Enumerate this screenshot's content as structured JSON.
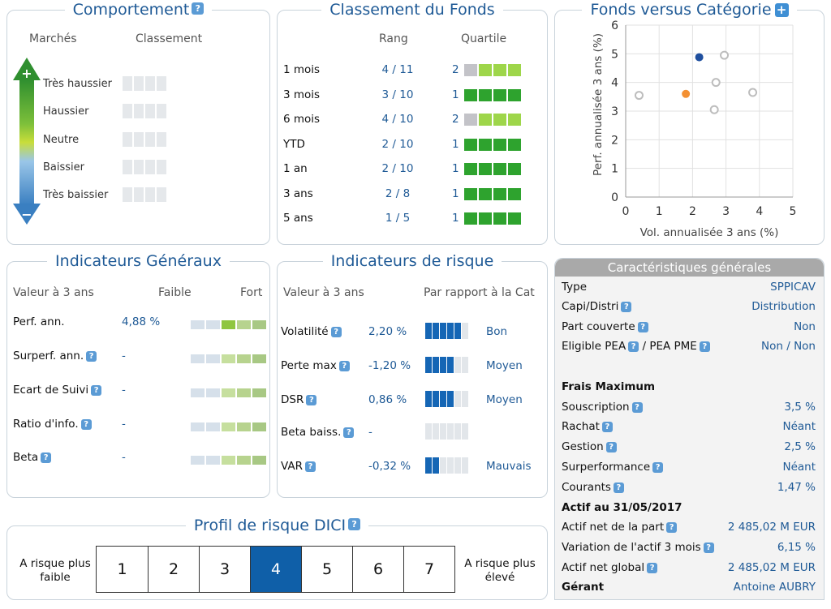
{
  "comportement": {
    "title": "Comportement",
    "col_markets": "Marchés",
    "col_classement": "Classement",
    "levels": [
      "Très haussier",
      "Haussier",
      "Neutre",
      "Baissier",
      "Très baissier"
    ],
    "arrow_top": "+",
    "arrow_bottom": "−"
  },
  "classement": {
    "title": "Classement du Fonds",
    "col_rang": "Rang",
    "col_quartile": "Quartile",
    "rows": [
      {
        "period": "1 mois",
        "rang": "4 / 11",
        "quartile": "2",
        "q": 2
      },
      {
        "period": "3 mois",
        "rang": "3 / 10",
        "quartile": "1",
        "q": 1
      },
      {
        "period": "6 mois",
        "rang": "4 / 10",
        "quartile": "2",
        "q": 2
      },
      {
        "period": "YTD",
        "rang": "2 / 10",
        "quartile": "1",
        "q": 1
      },
      {
        "period": "1 an",
        "rang": "2 / 10",
        "quartile": "1",
        "q": 1
      },
      {
        "period": "3 ans",
        "rang": "2 / 8",
        "quartile": "1",
        "q": 1
      },
      {
        "period": "5 ans",
        "rang": "1 / 5",
        "quartile": "1",
        "q": 1
      }
    ]
  },
  "fonds_vs_cat": {
    "title": "Fonds versus Catégorie",
    "plus": "+"
  },
  "chart_data": {
    "type": "scatter",
    "title": "",
    "xlabel": "Vol. annualisée 3 ans (%)",
    "ylabel": "Perf. annualisée 3 ans (%)",
    "xlim": [
      0,
      5
    ],
    "ylim": [
      0,
      6
    ],
    "xticks": [
      0,
      1,
      2,
      3,
      4,
      5
    ],
    "yticks": [
      0,
      1,
      2,
      3,
      4,
      5,
      6
    ],
    "grid": true,
    "points": [
      {
        "x": 2.2,
        "y": 4.88,
        "color": "#1f4f9e"
      },
      {
        "x": 1.8,
        "y": 3.6,
        "color": "#f39033"
      },
      {
        "x": 0.4,
        "y": 3.55,
        "color": "#bdbdbd"
      },
      {
        "x": 2.95,
        "y": 4.95,
        "color": "#bdbdbd"
      },
      {
        "x": 2.7,
        "y": 4.0,
        "color": "#bdbdbd"
      },
      {
        "x": 2.65,
        "y": 3.05,
        "color": "#bdbdbd"
      },
      {
        "x": 3.8,
        "y": 3.65,
        "color": "#bdbdbd"
      }
    ]
  },
  "indicateurs": {
    "title": "Indicateurs Généraux",
    "col_valeur": "Valeur à 3 ans",
    "col_faible": "Faible",
    "col_fort": "Fort",
    "rows": [
      {
        "label": "Perf. ann.",
        "value": "4,88 %",
        "level": 3
      },
      {
        "label": "Surperf. ann.",
        "value": "-",
        "level": 0
      },
      {
        "label": "Ecart de Suivi",
        "value": "-",
        "level": 0
      },
      {
        "label": "Ratio d'info.",
        "value": "-",
        "level": 0
      },
      {
        "label": "Beta",
        "value": "-",
        "level": 0
      }
    ]
  },
  "risque": {
    "title": "Indicateurs de risque",
    "col_valeur": "Valeur à 3 ans",
    "col_rapport": "Par rapport à la Cat",
    "rows": [
      {
        "label": "Volatilité",
        "value": "2,20 %",
        "rating": "Bon",
        "filled": 5
      },
      {
        "label": "Perte max",
        "value": "-1,20 %",
        "rating": "Moyen",
        "filled": 4
      },
      {
        "label": "DSR",
        "value": "0,86 %",
        "rating": "Moyen",
        "filled": 4
      },
      {
        "label": "Beta baiss.",
        "value": "-",
        "rating": "",
        "filled": 0
      },
      {
        "label": "VAR",
        "value": "-0,32 %",
        "rating": "Mauvais",
        "filled": 2
      }
    ]
  },
  "dici": {
    "title": "Profil de risque DICI",
    "low_label": "A risque plus faible",
    "high_label": "A risque plus élevé",
    "levels": [
      "1",
      "2",
      "3",
      "4",
      "5",
      "6",
      "7"
    ],
    "selected": 4
  },
  "caracteristiques": {
    "title": "Caractéristiques générales",
    "type_label": "Type",
    "type_value": "SPPICAV",
    "capi_label": "Capi/Distri",
    "capi_value": "Distribution",
    "couverte_label": "Part couverte",
    "couverte_value": "Non",
    "pea_label": "Eligible PEA",
    "pea_sep": " / PEA PME",
    "pea_value": "Non / Non",
    "frais_title": "Frais Maximum",
    "souscription_label": "Souscription",
    "souscription_value": "3,5 %",
    "rachat_label": "Rachat",
    "rachat_value": "Néant",
    "gestion_label": "Gestion",
    "gestion_value": "2,5 %",
    "surperf_label": "Surperformance",
    "surperf_value": "Néant",
    "courants_label": "Courants",
    "courants_value": "1,47 %",
    "actif_title": "Actif au 31/05/2017",
    "actif_part_label": "Actif net de la part",
    "actif_part_value": "2 485,02 M EUR",
    "variation_label": "Variation de l'actif 3 mois",
    "variation_value": "6,15 %",
    "actif_global_label": "Actif net global",
    "actif_global_value": "2 485,02 M EUR",
    "gerant_label": "Gérant",
    "gerant_value": "Antoine AUBRY"
  }
}
